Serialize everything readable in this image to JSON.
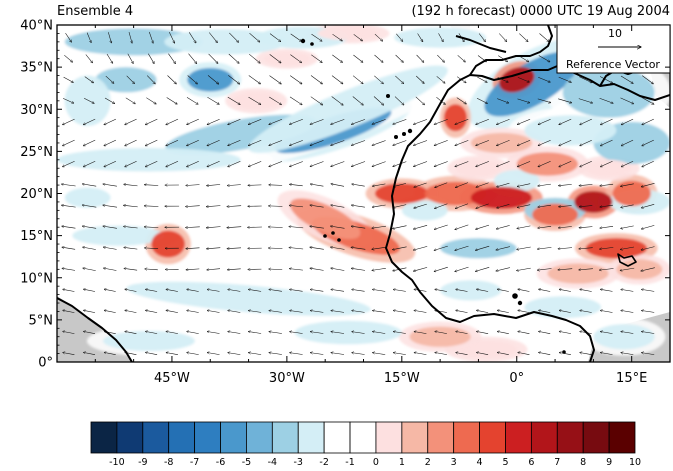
{
  "title_left": "Ensemble 4",
  "title_right": "(192 h forecast) 0000 UTC 19 Aug 2004",
  "reference_vector": {
    "magnitude": "10",
    "label": "Reference Vector"
  },
  "chart_data": {
    "type": "heatmap",
    "x_ticks": [
      "45°W",
      "30°W",
      "15°W",
      "0°",
      "15°E"
    ],
    "x_tick_values": [
      -45,
      -30,
      -15,
      0,
      15
    ],
    "y_ticks": [
      "0°",
      "5°N",
      "10°N",
      "15°N",
      "20°N",
      "25°N",
      "30°N",
      "35°N",
      "40°N"
    ],
    "y_tick_values": [
      0,
      5,
      10,
      15,
      20,
      25,
      30,
      35,
      40
    ],
    "xlim": [
      -60,
      20
    ],
    "ylim": [
      0,
      40
    ],
    "colorbar": {
      "labels": [
        "-10",
        "-9",
        "-8",
        "-7",
        "-6",
        "-5",
        "-4",
        "-3",
        "-2",
        "-1",
        "0",
        "1",
        "2",
        "3",
        "4",
        "5",
        "6",
        "7",
        "8",
        "9",
        "10"
      ],
      "colors": [
        "#0b2545",
        "#0f3a73",
        "#1b5a9e",
        "#2470b4",
        "#2e7ec0",
        "#4a98cc",
        "#6fb2d8",
        "#9dd0e4",
        "#d4eef6",
        "#ffffff",
        "#ffffff",
        "#fde0e0",
        "#f6b8a6",
        "#f3917a",
        "#ee6a50",
        "#e4432f",
        "#cc1f21",
        "#b2151a",
        "#961016",
        "#770b10",
        "#5a0000"
      ]
    },
    "anomaly_features": [
      {
        "lon": -24,
        "lat": 27.5,
        "value": -5.5,
        "rx": 8,
        "ry": 1.6,
        "rot": -18
      },
      {
        "lon": -36,
        "lat": 27,
        "value": -3,
        "rx": 10,
        "ry": 1.8,
        "rot": -10
      },
      {
        "lon": -48,
        "lat": 24,
        "value": -2,
        "rx": 12,
        "ry": 1.4,
        "rot": 0
      },
      {
        "lon": -22,
        "lat": 30,
        "value": -2,
        "rx": 14,
        "ry": 2.2,
        "rot": -22
      },
      {
        "lon": -50,
        "lat": 38,
        "value": -3,
        "rx": 9,
        "ry": 1.6,
        "rot": 0
      },
      {
        "lon": -38,
        "lat": 38,
        "value": -2,
        "rx": 8,
        "ry": 1.5,
        "rot": 0
      },
      {
        "lon": -28,
        "lat": 38.5,
        "value": -2,
        "rx": 6,
        "ry": 1.3,
        "rot": 0
      },
      {
        "lon": -40,
        "lat": 33.5,
        "value": -5,
        "rx": 3,
        "ry": 1.4,
        "rot": 0
      },
      {
        "lon": -51,
        "lat": 33.5,
        "value": -3,
        "rx": 4,
        "ry": 1.5,
        "rot": 0
      },
      {
        "lon": -56,
        "lat": 31,
        "value": -2,
        "rx": 3,
        "ry": 3,
        "rot": 0
      },
      {
        "lon": -10,
        "lat": 38.5,
        "value": -2,
        "rx": 6,
        "ry": 1.2,
        "rot": 0
      },
      {
        "lon": 2,
        "lat": 33,
        "value": -5,
        "rx": 7,
        "ry": 2.5,
        "rot": -30
      },
      {
        "lon": 12,
        "lat": 32,
        "value": -3,
        "rx": 6,
        "ry": 3,
        "rot": 0
      },
      {
        "lon": 15,
        "lat": 26,
        "value": -3,
        "rx": 5,
        "ry": 2.5,
        "rot": 0
      },
      {
        "lon": 7,
        "lat": 27.5,
        "value": -2,
        "rx": 6,
        "ry": 1.8,
        "rot": 0
      },
      {
        "lon": -5,
        "lat": 13.5,
        "value": -3,
        "rx": 5,
        "ry": 1.2,
        "rot": 0
      },
      {
        "lon": -12,
        "lat": 18,
        "value": -2,
        "rx": 3,
        "ry": 1.2,
        "rot": 0
      },
      {
        "lon": 0,
        "lat": 21.5,
        "value": -2,
        "rx": 3,
        "ry": 1.3,
        "rot": 0
      },
      {
        "lon": 5,
        "lat": 18,
        "value": -3,
        "rx": 4,
        "ry": 1.5,
        "rot": 0
      },
      {
        "lon": 16,
        "lat": 19,
        "value": -2,
        "rx": 4,
        "ry": 1.5,
        "rot": 0
      },
      {
        "lon": -35,
        "lat": 7.5,
        "value": -2,
        "rx": 16,
        "ry": 1.6,
        "rot": 5
      },
      {
        "lon": -22,
        "lat": 3.5,
        "value": -2,
        "rx": 7,
        "ry": 1.4,
        "rot": 0
      },
      {
        "lon": -48,
        "lat": 2.5,
        "value": -2,
        "rx": 6,
        "ry": 1.2,
        "rot": 0
      },
      {
        "lon": -6,
        "lat": 8.5,
        "value": -2,
        "rx": 4,
        "ry": 1.2,
        "rot": 0
      },
      {
        "lon": 6,
        "lat": 6.5,
        "value": -2,
        "rx": 5,
        "ry": 1.3,
        "rot": 0
      },
      {
        "lon": 14,
        "lat": 3,
        "value": -2,
        "rx": 4,
        "ry": 1.5,
        "rot": 0
      },
      {
        "lon": -52,
        "lat": 15,
        "value": -2,
        "rx": 6,
        "ry": 1.2,
        "rot": 0
      },
      {
        "lon": -56,
        "lat": 19.5,
        "value": -2,
        "rx": 3,
        "ry": 1.2,
        "rot": 0
      },
      {
        "lon": -15,
        "lat": 20,
        "value": 5,
        "rx": 3.5,
        "ry": 1.2,
        "rot": 0
      },
      {
        "lon": -8,
        "lat": 20,
        "value": 4,
        "rx": 4,
        "ry": 1.4,
        "rot": 0
      },
      {
        "lon": -2,
        "lat": 19.5,
        "value": 6,
        "rx": 4,
        "ry": 1.3,
        "rot": 0
      },
      {
        "lon": 5,
        "lat": 17.5,
        "value": 4,
        "rx": 3,
        "ry": 1.3,
        "rot": 0
      },
      {
        "lon": 10,
        "lat": 19,
        "value": 7,
        "rx": 2.5,
        "ry": 1.3,
        "rot": 0
      },
      {
        "lon": 15,
        "lat": 20,
        "value": 4,
        "rx": 2.5,
        "ry": 1.5,
        "rot": 0
      },
      {
        "lon": 13,
        "lat": 13.5,
        "value": 5,
        "rx": 4,
        "ry": 1.2,
        "rot": 0
      },
      {
        "lon": -21,
        "lat": 15,
        "value": 4,
        "rx": 6,
        "ry": 1.6,
        "rot": 18
      },
      {
        "lon": -25,
        "lat": 17,
        "value": 3,
        "rx": 5,
        "ry": 1.6,
        "rot": 25
      },
      {
        "lon": -45.5,
        "lat": 14,
        "value": 5,
        "rx": 2.2,
        "ry": 1.6,
        "rot": 0
      },
      {
        "lon": -8,
        "lat": 29,
        "value": 5,
        "rx": 1.5,
        "ry": 1.6,
        "rot": 0
      },
      {
        "lon": 0,
        "lat": 33.5,
        "value": 7,
        "rx": 2.4,
        "ry": 1.4,
        "rot": -20
      },
      {
        "lon": 4,
        "lat": 23.5,
        "value": 3,
        "rx": 4,
        "ry": 1.4,
        "rot": 0
      },
      {
        "lon": -2,
        "lat": 26,
        "value": 2,
        "rx": 4,
        "ry": 1.2,
        "rot": 0
      },
      {
        "lon": -34,
        "lat": 31,
        "value": 1,
        "rx": 3,
        "ry": 1,
        "rot": 0
      },
      {
        "lon": -30,
        "lat": 36,
        "value": 1,
        "rx": 3,
        "ry": 0.8,
        "rot": 0
      },
      {
        "lon": -22,
        "lat": 39,
        "value": 1,
        "rx": 4,
        "ry": 0.8,
        "rot": 0
      },
      {
        "lon": -10,
        "lat": 3,
        "value": 2,
        "rx": 4,
        "ry": 1.2,
        "rot": 0
      },
      {
        "lon": -4,
        "lat": 1.5,
        "value": 1,
        "rx": 4,
        "ry": 1,
        "rot": 0
      },
      {
        "lon": 8,
        "lat": 10.5,
        "value": 2,
        "rx": 4,
        "ry": 1.2,
        "rot": 0
      },
      {
        "lon": 16,
        "lat": 11,
        "value": 2,
        "rx": 3,
        "ry": 1.2,
        "rot": 0
      },
      {
        "lon": -5,
        "lat": 23,
        "value": 1,
        "rx": 3,
        "ry": 1,
        "rot": 0
      },
      {
        "lon": 12,
        "lat": 23,
        "value": 1,
        "rx": 3,
        "ry": 1,
        "rot": 0
      }
    ]
  }
}
